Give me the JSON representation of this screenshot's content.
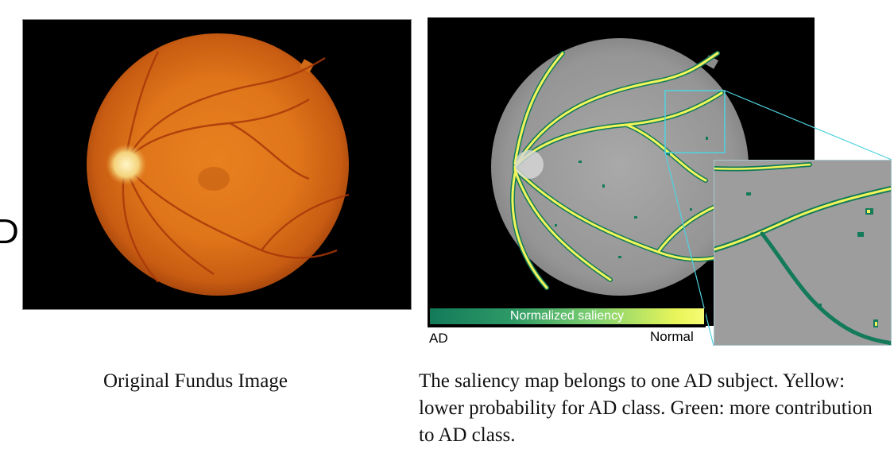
{
  "left_edge_glyph": "D",
  "original_panel": {
    "caption": "Original Fundus Image"
  },
  "saliency_panel": {
    "caption": "The saliency map belongs to one AD subject. Yellow: lower probability for AD class. Green: more contribution to AD class.",
    "colorbar_label": "Normalized saliency",
    "scale_left": "AD",
    "scale_right": "Normal"
  },
  "colors": {
    "fundus_orange": "#e0781c",
    "saliency_green": "#137a5a",
    "saliency_yellow": "#f2f65a",
    "zoom_outline": "#4fd3e0"
  }
}
